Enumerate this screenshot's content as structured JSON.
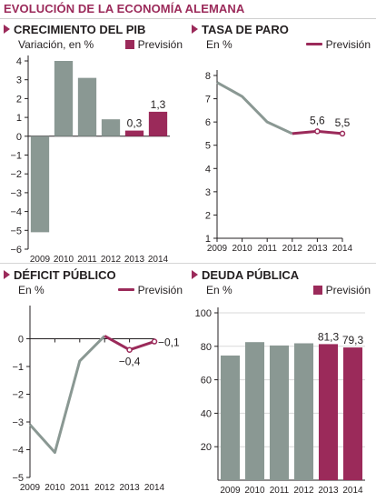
{
  "page_title": "EVOLUCIÓN DE LA ECONOMÍA ALEMANA",
  "colors": {
    "historic": "#8a9893",
    "forecast": "#9b2a5a",
    "axis": "#231f20",
    "grid": "#d9d9d9"
  },
  "chart_data": [
    {
      "id": "pib",
      "type": "bar",
      "title": "CRECIMIENTO DEL PIB",
      "subtitle": "Variación, en %",
      "legend_label": "Previsión",
      "legend_symbol": "box",
      "categories": [
        "2009",
        "2010",
        "2011",
        "2012",
        "2013",
        "2014"
      ],
      "values": [
        -5.1,
        4.0,
        3.1,
        0.9,
        0.3,
        1.3
      ],
      "forecast": [
        false,
        false,
        false,
        false,
        true,
        true
      ],
      "data_labels": [
        null,
        null,
        null,
        null,
        "0,3",
        "1,3"
      ],
      "ylim": [
        -6,
        4
      ],
      "yticks": [
        -6,
        -5,
        -4,
        -3,
        -2,
        -1,
        0,
        1,
        2,
        3,
        4
      ],
      "ytick_labels": [
        "−6",
        "−5",
        "−4",
        "−3",
        "−2",
        "−1",
        "0",
        "1",
        "2",
        "3",
        "4"
      ],
      "grid": false
    },
    {
      "id": "paro",
      "type": "line",
      "title": "TASA DE PARO",
      "subtitle": "En %",
      "legend_label": "Previsión",
      "legend_symbol": "line",
      "categories": [
        "2009",
        "2010",
        "2011",
        "2012",
        "2013",
        "2014"
      ],
      "values": [
        7.7,
        7.1,
        6.0,
        5.5,
        5.6,
        5.5
      ],
      "forecast_from_index": 3,
      "data_labels": [
        null,
        null,
        null,
        null,
        "5,6",
        "5,5"
      ],
      "ylim": [
        1,
        8
      ],
      "yticks": [
        1,
        2,
        3,
        4,
        5,
        6,
        7,
        8
      ],
      "ytick_labels": [
        "1",
        "2",
        "3",
        "4",
        "5",
        "6",
        "7",
        "8"
      ],
      "grid": false
    },
    {
      "id": "deficit",
      "type": "line",
      "title": "DÉFICIT PÚBLICO",
      "subtitle": "En %",
      "legend_label": "Previsión",
      "legend_symbol": "line",
      "categories": [
        "2009",
        "2010",
        "2011",
        "2012",
        "2013",
        "2014"
      ],
      "values": [
        -3.1,
        -4.1,
        -0.8,
        0.1,
        -0.4,
        -0.1
      ],
      "forecast_from_index": 3,
      "data_labels": [
        null,
        null,
        null,
        null,
        "−0,4",
        "−0,1"
      ],
      "ylim": [
        -5,
        1
      ],
      "yticks": [
        -5,
        -4,
        -3,
        -2,
        -1,
        0
      ],
      "ytick_labels": [
        "−5",
        "−4",
        "−3",
        "−2",
        "−1",
        "0"
      ],
      "grid": false
    },
    {
      "id": "deuda",
      "type": "bar",
      "title": "DEUDA PÚBLICA",
      "subtitle": "En %",
      "legend_label": "Previsión",
      "legend_symbol": "box",
      "categories": [
        "2009",
        "2010",
        "2011",
        "2012",
        "2013",
        "2014"
      ],
      "values": [
        74.5,
        82.5,
        80.5,
        81.8,
        81.3,
        79.3
      ],
      "forecast": [
        false,
        false,
        false,
        false,
        true,
        true
      ],
      "data_labels": [
        null,
        null,
        null,
        null,
        "81,3",
        "79,3"
      ],
      "ylim": [
        0,
        100
      ],
      "yticks": [
        20,
        40,
        60,
        80,
        100
      ],
      "ytick_labels": [
        "20",
        "40",
        "60",
        "80",
        "100"
      ],
      "grid": true
    }
  ]
}
